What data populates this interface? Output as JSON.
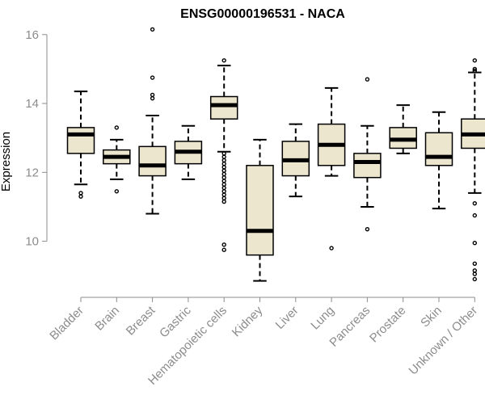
{
  "chart_data": {
    "type": "box",
    "title": "ENSG00000196531 - NACA",
    "xlabel": "",
    "ylabel": "Expression",
    "ylim": [
      8.7,
      16.3
    ],
    "yticks": [
      10,
      12,
      14,
      16
    ],
    "colors": {
      "box_fill": "#ede6cf",
      "box_stroke": "#000000",
      "axis": "#8c8c8c",
      "text": "#8c8c8c"
    },
    "categories": [
      "Bladder",
      "Brain",
      "Breast",
      "Gastric",
      "Hematopoietic cells",
      "Kidney",
      "Liver",
      "Lung",
      "Pancreas",
      "Prostate",
      "Skin",
      "Unknown / Other"
    ],
    "boxes": [
      {
        "min": 11.65,
        "q1": 12.55,
        "median": 13.1,
        "q3": 13.3,
        "max": 14.35,
        "outliers": [
          11.3,
          11.4
        ]
      },
      {
        "min": 11.8,
        "q1": 12.25,
        "median": 12.45,
        "q3": 12.65,
        "max": 12.95,
        "outliers": [
          13.3,
          11.45
        ]
      },
      {
        "min": 10.8,
        "q1": 11.9,
        "median": 12.2,
        "q3": 12.75,
        "max": 13.65,
        "outliers": [
          16.15,
          14.75,
          14.25,
          14.15
        ]
      },
      {
        "min": 11.8,
        "q1": 12.25,
        "median": 12.6,
        "q3": 12.9,
        "max": 13.35,
        "outliers": []
      },
      {
        "min": 12.6,
        "q1": 13.55,
        "median": 13.95,
        "q3": 14.2,
        "max": 15.1,
        "outliers": [
          15.25,
          12.55,
          12.45,
          12.35,
          12.25,
          12.15,
          12.05,
          11.95,
          11.85,
          11.75,
          11.65,
          11.55,
          11.45,
          11.35,
          11.25,
          11.15,
          9.9,
          9.75
        ]
      },
      {
        "min": 8.85,
        "q1": 9.6,
        "median": 10.3,
        "q3": 12.2,
        "max": 12.95,
        "outliers": []
      },
      {
        "min": 11.3,
        "q1": 11.9,
        "median": 12.35,
        "q3": 12.9,
        "max": 13.4,
        "outliers": []
      },
      {
        "min": 11.9,
        "q1": 12.2,
        "median": 12.8,
        "q3": 13.4,
        "max": 14.45,
        "outliers": [
          9.8
        ]
      },
      {
        "min": 11.0,
        "q1": 11.85,
        "median": 12.3,
        "q3": 12.55,
        "max": 13.35,
        "outliers": [
          14.7,
          10.35
        ]
      },
      {
        "min": 12.55,
        "q1": 12.7,
        "median": 12.95,
        "q3": 13.3,
        "max": 13.95,
        "outliers": []
      },
      {
        "min": 10.95,
        "q1": 12.2,
        "median": 12.45,
        "q3": 13.15,
        "max": 13.75,
        "outliers": []
      },
      {
        "min": 11.4,
        "q1": 12.7,
        "median": 13.1,
        "q3": 13.55,
        "max": 14.9,
        "outliers": [
          15.25,
          15.0,
          14.95,
          11.1,
          10.75,
          9.95,
          9.35,
          9.15,
          9.05,
          8.9
        ]
      }
    ]
  }
}
